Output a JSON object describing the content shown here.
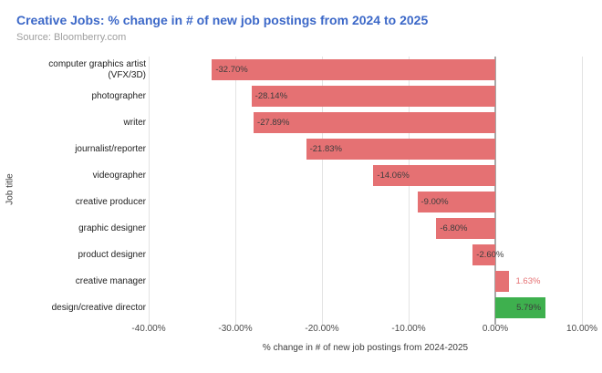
{
  "header": {
    "title": "Creative Jobs: % change in # of new job postings from 2024 to 2025",
    "source": "Source: Bloomberry.com"
  },
  "colors": {
    "title": "#3c68c8",
    "source": "#9e9e9e",
    "negative_bar": "#e57173",
    "positive_bar": "#3eb04e",
    "grid": "#e3e3e3",
    "axis_line": "#a8a8a8",
    "label_dark": "#3d3d3d"
  },
  "chart_data": {
    "type": "bar",
    "orientation": "horizontal",
    "title": "Creative Jobs: % change in # of new job postings from 2024 to 2025",
    "xlabel": "% change in # of new job postings from 2024-2025",
    "ylabel": "Job title",
    "xlim": [
      -40,
      10
    ],
    "grid": true,
    "legend": false,
    "x_ticks": [
      {
        "value": -40,
        "label": "-40.00%"
      },
      {
        "value": -30,
        "label": "-30.00%"
      },
      {
        "value": -20,
        "label": "-20.00%"
      },
      {
        "value": -10,
        "label": "-10.00%"
      },
      {
        "value": 0,
        "label": "0.00%"
      },
      {
        "value": 10,
        "label": "10.00%"
      }
    ],
    "points": [
      {
        "category": "computer graphics artist (VFX/3D)",
        "value": -32.7,
        "value_label": "-32.70%",
        "color": "#e57173"
      },
      {
        "category": "photographer",
        "value": -28.14,
        "value_label": "-28.14%",
        "color": "#e57173"
      },
      {
        "category": "writer",
        "value": -27.89,
        "value_label": "-27.89%",
        "color": "#e57173"
      },
      {
        "category": "journalist/reporter",
        "value": -21.83,
        "value_label": "-21.83%",
        "color": "#e57173"
      },
      {
        "category": "videographer",
        "value": -14.06,
        "value_label": "-14.06%",
        "color": "#e57173"
      },
      {
        "category": "creative producer",
        "value": -9.0,
        "value_label": "-9.00%",
        "color": "#e57173"
      },
      {
        "category": "graphic designer",
        "value": -6.8,
        "value_label": "-6.80%",
        "color": "#e57173"
      },
      {
        "category": "product designer",
        "value": -2.6,
        "value_label": "-2.60%",
        "color": "#e57173"
      },
      {
        "category": "creative manager",
        "value": 1.63,
        "value_label": "1.63%",
        "color": "#e57173"
      },
      {
        "category": "design/creative director",
        "value": 5.79,
        "value_label": "5.79%",
        "color": "#3eb04e"
      }
    ]
  }
}
